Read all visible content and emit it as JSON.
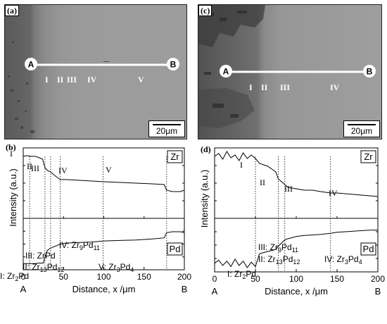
{
  "panels": {
    "a": {
      "label": "(a)",
      "scale": "20μm",
      "start": "A",
      "end": "B",
      "zones": [
        "I",
        "II",
        "III",
        "IV",
        "V"
      ]
    },
    "c": {
      "label": "(c)",
      "scale": "20μm",
      "start": "A",
      "end": "B",
      "zones": [
        "I",
        "II",
        "III",
        "IV"
      ]
    },
    "b": {
      "label": "(b)",
      "zr": "Zr",
      "pd": "Pd",
      "zones": [
        "I",
        "II",
        "III",
        "IV",
        "V"
      ],
      "phases": [
        "IV: Zr9Pd11",
        "III: ZrPd",
        "II: Zr13Pd12",
        "V: Zr3Pd4",
        "I: Zr2Pd"
      ]
    },
    "d": {
      "label": "(d)",
      "zr": "Zr",
      "pd": "Pd",
      "zones": [
        "I",
        "II",
        "III",
        "IV"
      ],
      "phases": [
        "III: Zr9Pd11",
        "II: Zr13Pd12",
        "IV: Zr3Pd4",
        "I: Zr2Pd"
      ]
    }
  },
  "chart_data": [
    {
      "type": "line",
      "panel": "b",
      "xlabel": "Distance, x /μm",
      "ylabel": "Intensity (a.u.)",
      "xlim": [
        0,
        200
      ],
      "xticks": [
        0,
        50,
        100,
        150,
        200
      ],
      "x_end_labels": [
        "A",
        "B"
      ],
      "boundaries": [
        8,
        27,
        34,
        46,
        99,
        178
      ],
      "series": [
        {
          "name": "Zr",
          "x": [
            0,
            5,
            10,
            15,
            20,
            24,
            27,
            30,
            34,
            40,
            46,
            55,
            70,
            85,
            100,
            120,
            140,
            160,
            175,
            178,
            185,
            195,
            200
          ],
          "y": [
            0.88,
            0.89,
            0.88,
            0.88,
            0.86,
            0.84,
            0.72,
            0.68,
            0.66,
            0.6,
            0.55,
            0.55,
            0.54,
            0.53,
            0.52,
            0.51,
            0.5,
            0.49,
            0.48,
            0.4,
            0.38,
            0.38,
            0.4
          ]
        },
        {
          "name": "Pd",
          "x": [
            0,
            8,
            15,
            20,
            25,
            27,
            30,
            34,
            40,
            46,
            55,
            70,
            85,
            100,
            120,
            140,
            160,
            175,
            178,
            185,
            195,
            200
          ],
          "y": [
            0.12,
            0.12,
            0.12,
            0.13,
            0.13,
            0.25,
            0.38,
            0.42,
            0.46,
            0.5,
            0.52,
            0.53,
            0.54,
            0.56,
            0.57,
            0.58,
            0.6,
            0.62,
            0.72,
            0.74,
            0.74,
            0.72
          ]
        }
      ]
    },
    {
      "type": "line",
      "panel": "d",
      "xlabel": "Distance, x /μm",
      "ylabel": "Intensity (a.u.)",
      "xlim": [
        0,
        200
      ],
      "xticks": [
        0,
        50,
        100,
        150,
        200
      ],
      "x_end_labels": [
        "A",
        "B"
      ],
      "boundaries": [
        50,
        78,
        86,
        142
      ],
      "series": [
        {
          "name": "Zr",
          "x": [
            0,
            5,
            10,
            15,
            20,
            25,
            30,
            35,
            40,
            45,
            50,
            55,
            60,
            65,
            70,
            75,
            78,
            82,
            86,
            90,
            100,
            110,
            120,
            130,
            142,
            150,
            160,
            170,
            180,
            190,
            200
          ],
          "y": [
            0.88,
            0.92,
            0.84,
            0.95,
            0.86,
            0.9,
            0.82,
            0.93,
            0.85,
            0.9,
            0.85,
            0.78,
            0.76,
            0.74,
            0.7,
            0.66,
            0.56,
            0.52,
            0.48,
            0.44,
            0.42,
            0.4,
            0.4,
            0.38,
            0.36,
            0.36,
            0.35,
            0.34,
            0.33,
            0.32,
            0.31
          ]
        },
        {
          "name": "Pd",
          "x": [
            0,
            5,
            10,
            15,
            20,
            25,
            30,
            35,
            40,
            45,
            50,
            55,
            60,
            65,
            70,
            75,
            78,
            82,
            86,
            90,
            100,
            110,
            120,
            130,
            142,
            150,
            160,
            170,
            180,
            190,
            200
          ],
          "y": [
            0.16,
            0.22,
            0.12,
            0.2,
            0.1,
            0.24,
            0.12,
            0.2,
            0.08,
            0.18,
            0.1,
            0.34,
            0.36,
            0.38,
            0.4,
            0.42,
            0.48,
            0.54,
            0.6,
            0.62,
            0.66,
            0.68,
            0.69,
            0.7,
            0.72,
            0.74,
            0.75,
            0.76,
            0.77,
            0.78,
            0.78
          ]
        }
      ]
    }
  ]
}
